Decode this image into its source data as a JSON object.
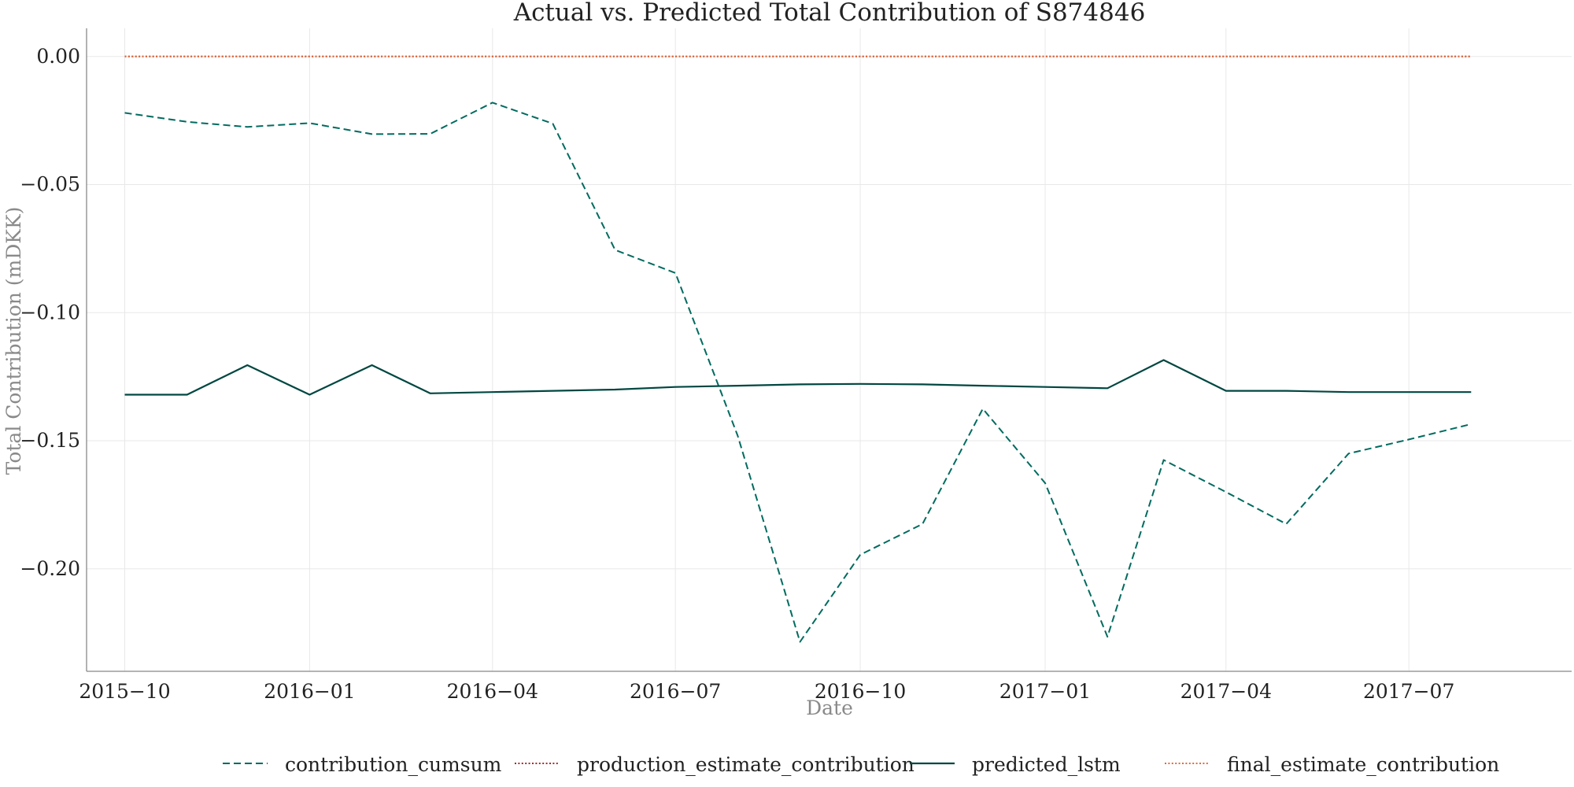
{
  "chart_data": {
    "type": "line",
    "title": "Actual vs. Predicted Total Contribution of S874846",
    "xlabel": "Date",
    "ylabel": "Total Contribution (mDKK)",
    "x": [
      "2015-10",
      "2015-11",
      "2015-12",
      "2016-01",
      "2016-02",
      "2016-03",
      "2016-04",
      "2016-05",
      "2016-06",
      "2016-07",
      "2016-08",
      "2016-09",
      "2016-10",
      "2016-11",
      "2016-12",
      "2017-01",
      "2017-02",
      "2017-03",
      "2017-04",
      "2017-05",
      "2017-06",
      "2017-07",
      "2017-08"
    ],
    "xlim": [
      "2015-09-12",
      "2017-09-20"
    ],
    "ylim": [
      -0.24,
      0.011
    ],
    "x_ticks": [
      "2015-10",
      "2016-01",
      "2016-04",
      "2016-07",
      "2016-10",
      "2017-01",
      "2017-04",
      "2017-07"
    ],
    "x_tick_labels": [
      "2015−10",
      "2016−01",
      "2016−04",
      "2016−07",
      "2016−10",
      "2017−01",
      "2017−04",
      "2017−07"
    ],
    "y_ticks": [
      0.0,
      -0.05,
      -0.1,
      -0.15,
      -0.2
    ],
    "y_tick_labels": [
      "0.00",
      "−0.05",
      "−0.10",
      "−0.15",
      "−0.20"
    ],
    "grid": true,
    "legend_position": "bottom-center",
    "series": [
      {
        "name": "contribution_cumsum",
        "style": "dashed",
        "color": "#006b5f",
        "values": [
          -0.022,
          -0.0255,
          -0.0275,
          -0.026,
          -0.0303,
          -0.0302,
          -0.018,
          -0.0262,
          -0.0755,
          -0.0845,
          -0.148,
          -0.2285,
          -0.1945,
          -0.1825,
          -0.1375,
          -0.1665,
          -0.2265,
          -0.1575,
          -0.17,
          -0.1825,
          -0.155,
          -0.1495,
          -0.1435
        ]
      },
      {
        "name": "production_estimate_contribution",
        "style": "dotted",
        "color": "#a52a2a",
        "values": [
          0.0,
          0.0,
          0.0,
          0.0,
          0.0,
          0.0,
          0.0,
          0.0,
          0.0,
          0.0,
          0.0,
          0.0,
          0.0,
          0.0,
          0.0,
          0.0,
          0.0,
          0.0,
          0.0,
          0.0,
          0.0,
          0.0,
          0.0
        ]
      },
      {
        "name": "predicted_lstm",
        "style": "solid",
        "color": "#004741",
        "values": [
          -0.132,
          -0.132,
          -0.1205,
          -0.132,
          -0.1205,
          -0.1315,
          -0.131,
          -0.1305,
          -0.13,
          -0.129,
          -0.1285,
          -0.128,
          -0.1278,
          -0.128,
          -0.1285,
          -0.129,
          -0.1295,
          -0.1185,
          -0.1305,
          -0.1305,
          -0.131,
          -0.131,
          -0.131
        ]
      },
      {
        "name": "final_estimate_contribution",
        "style": "dotted",
        "color": "#e06a3a",
        "values": [
          0.0,
          0.0,
          0.0,
          0.0,
          0.0,
          0.0,
          0.0,
          0.0,
          0.0,
          0.0,
          0.0,
          0.0,
          0.0,
          0.0,
          0.0,
          0.0,
          0.0,
          0.0,
          0.0,
          0.0,
          0.0,
          0.0,
          0.0
        ]
      }
    ]
  }
}
